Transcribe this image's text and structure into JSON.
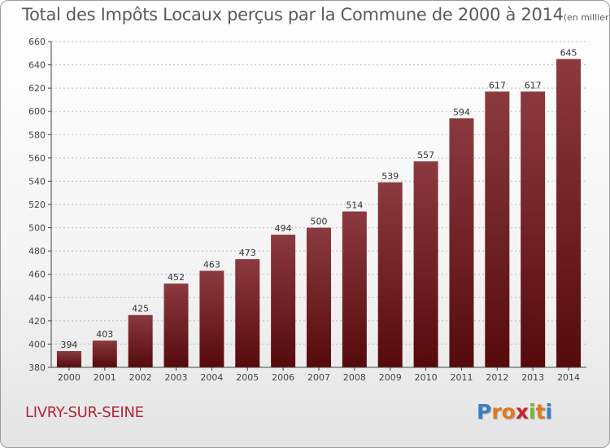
{
  "title": "Total des Impôts Locaux perçus par la Commune de 2000 à 2014",
  "title_unit": "(en milliers d'€)",
  "commune": "LIVRY-SUR-SEINE",
  "logo": {
    "letters": [
      "P",
      "r",
      "o",
      "x",
      "i",
      "t",
      "i"
    ],
    "colors": [
      "#3a7fc2",
      "#e2781e",
      "#e2781e",
      "#c4262e",
      "#74b63a",
      "#e2781e",
      "#3a7fc2"
    ]
  },
  "colors": {
    "bar_top": "#8b3a3f",
    "bar_bottom": "#560a0c",
    "axis": "#444444",
    "grid": "#bbbbbb"
  },
  "chart_data": {
    "type": "bar",
    "categories": [
      "2000",
      "2001",
      "2002",
      "2003",
      "2004",
      "2005",
      "2006",
      "2007",
      "2008",
      "2009",
      "2010",
      "2011",
      "2012",
      "2013",
      "2014"
    ],
    "values": [
      394,
      403,
      425,
      452,
      463,
      473,
      494,
      500,
      514,
      539,
      557,
      594,
      617,
      617,
      645
    ],
    "title": "Total des Impôts Locaux perçus par la Commune de 2000 à 2014",
    "ylim": [
      380,
      660
    ],
    "yticks": [
      380,
      400,
      420,
      440,
      460,
      480,
      500,
      520,
      540,
      560,
      580,
      600,
      620,
      640,
      660
    ],
    "grid": true,
    "data_labels": true
  }
}
